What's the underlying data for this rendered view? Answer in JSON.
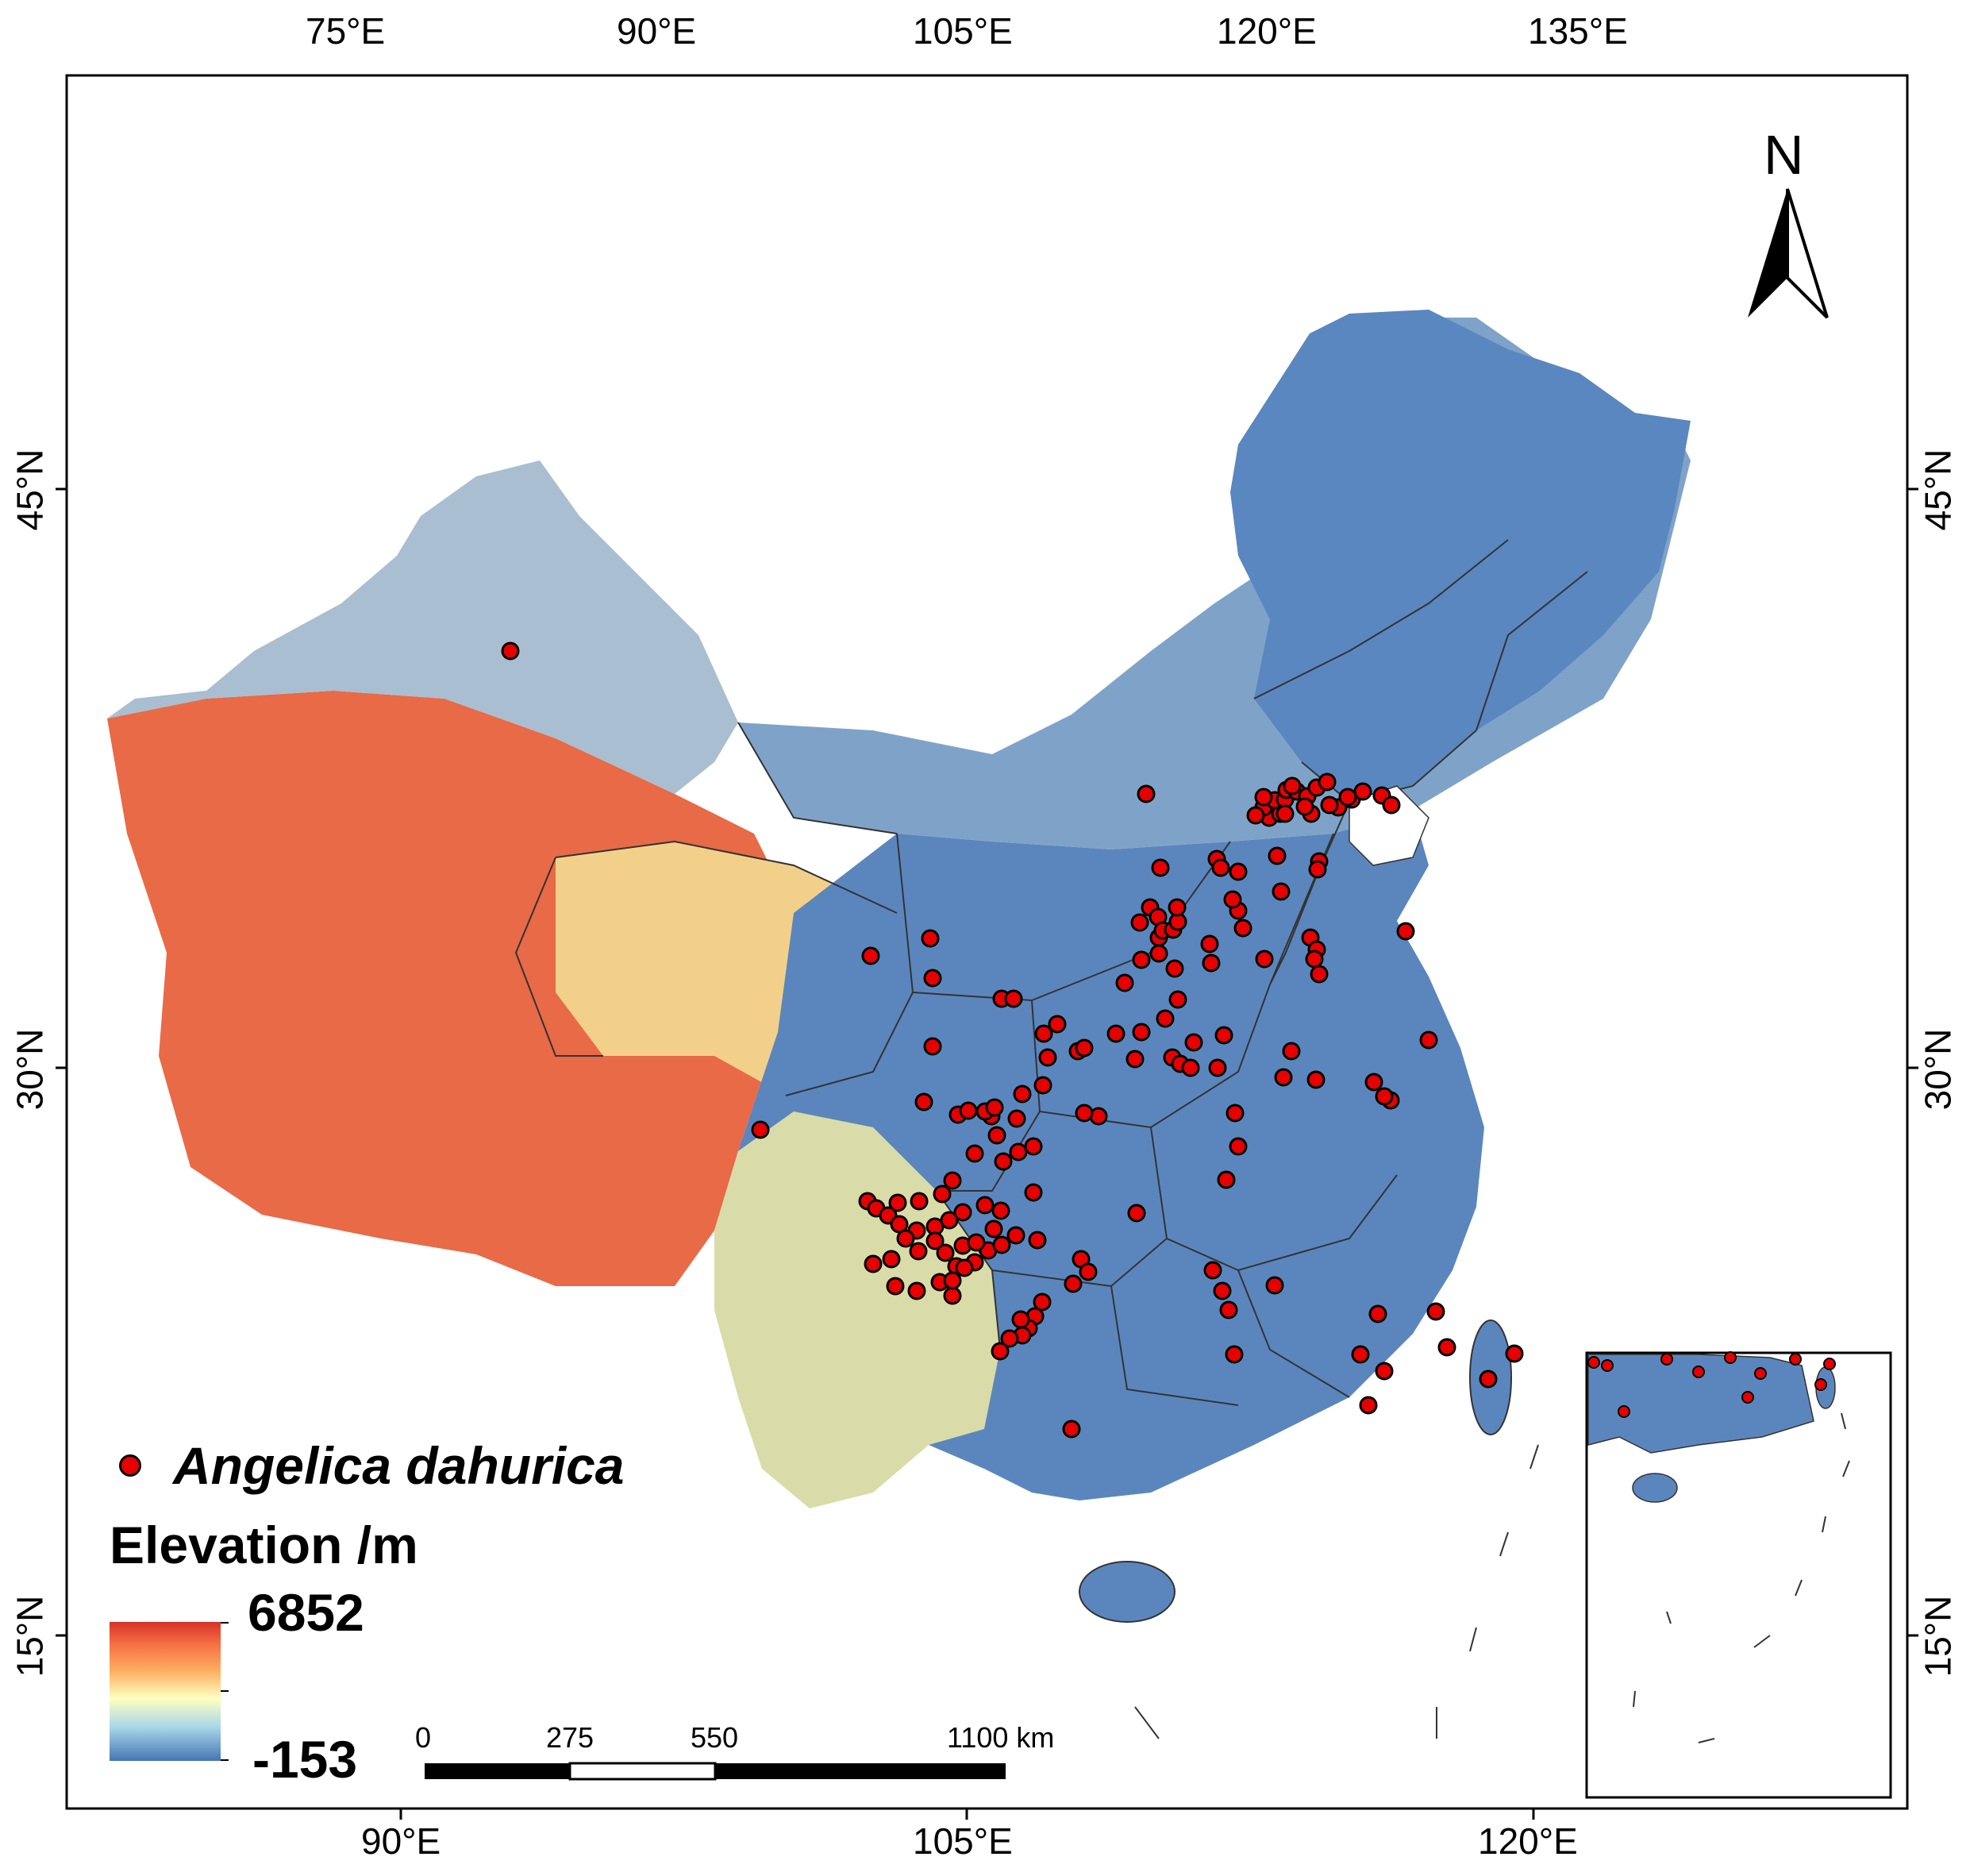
{
  "map": {
    "top_axis_labels": [
      "75°E",
      "90°E",
      "105°E",
      "120°E",
      "135°E"
    ],
    "bottom_axis_labels": [
      "90°E",
      "105°E",
      "120°E"
    ],
    "left_axis_labels": [
      "45°N",
      "30°N",
      "15°N"
    ],
    "right_axis_labels": [
      "45°N",
      "30°N",
      "15°N"
    ],
    "north_label": "N",
    "legend": {
      "species_label": "Angelica dahurica",
      "elevation_title": "Elevation /m",
      "elevation_max": "6852",
      "elevation_min": "-153",
      "point_color": "#e60000",
      "ramp_colors": [
        "#d73027",
        "#f46d43",
        "#fdae61",
        "#ffffbf",
        "#abd9e9",
        "#4575b4"
      ]
    },
    "scale_bar": {
      "labels": [
        "0",
        "275",
        "550",
        "1100 km"
      ]
    },
    "occurrence_count": 165
  }
}
